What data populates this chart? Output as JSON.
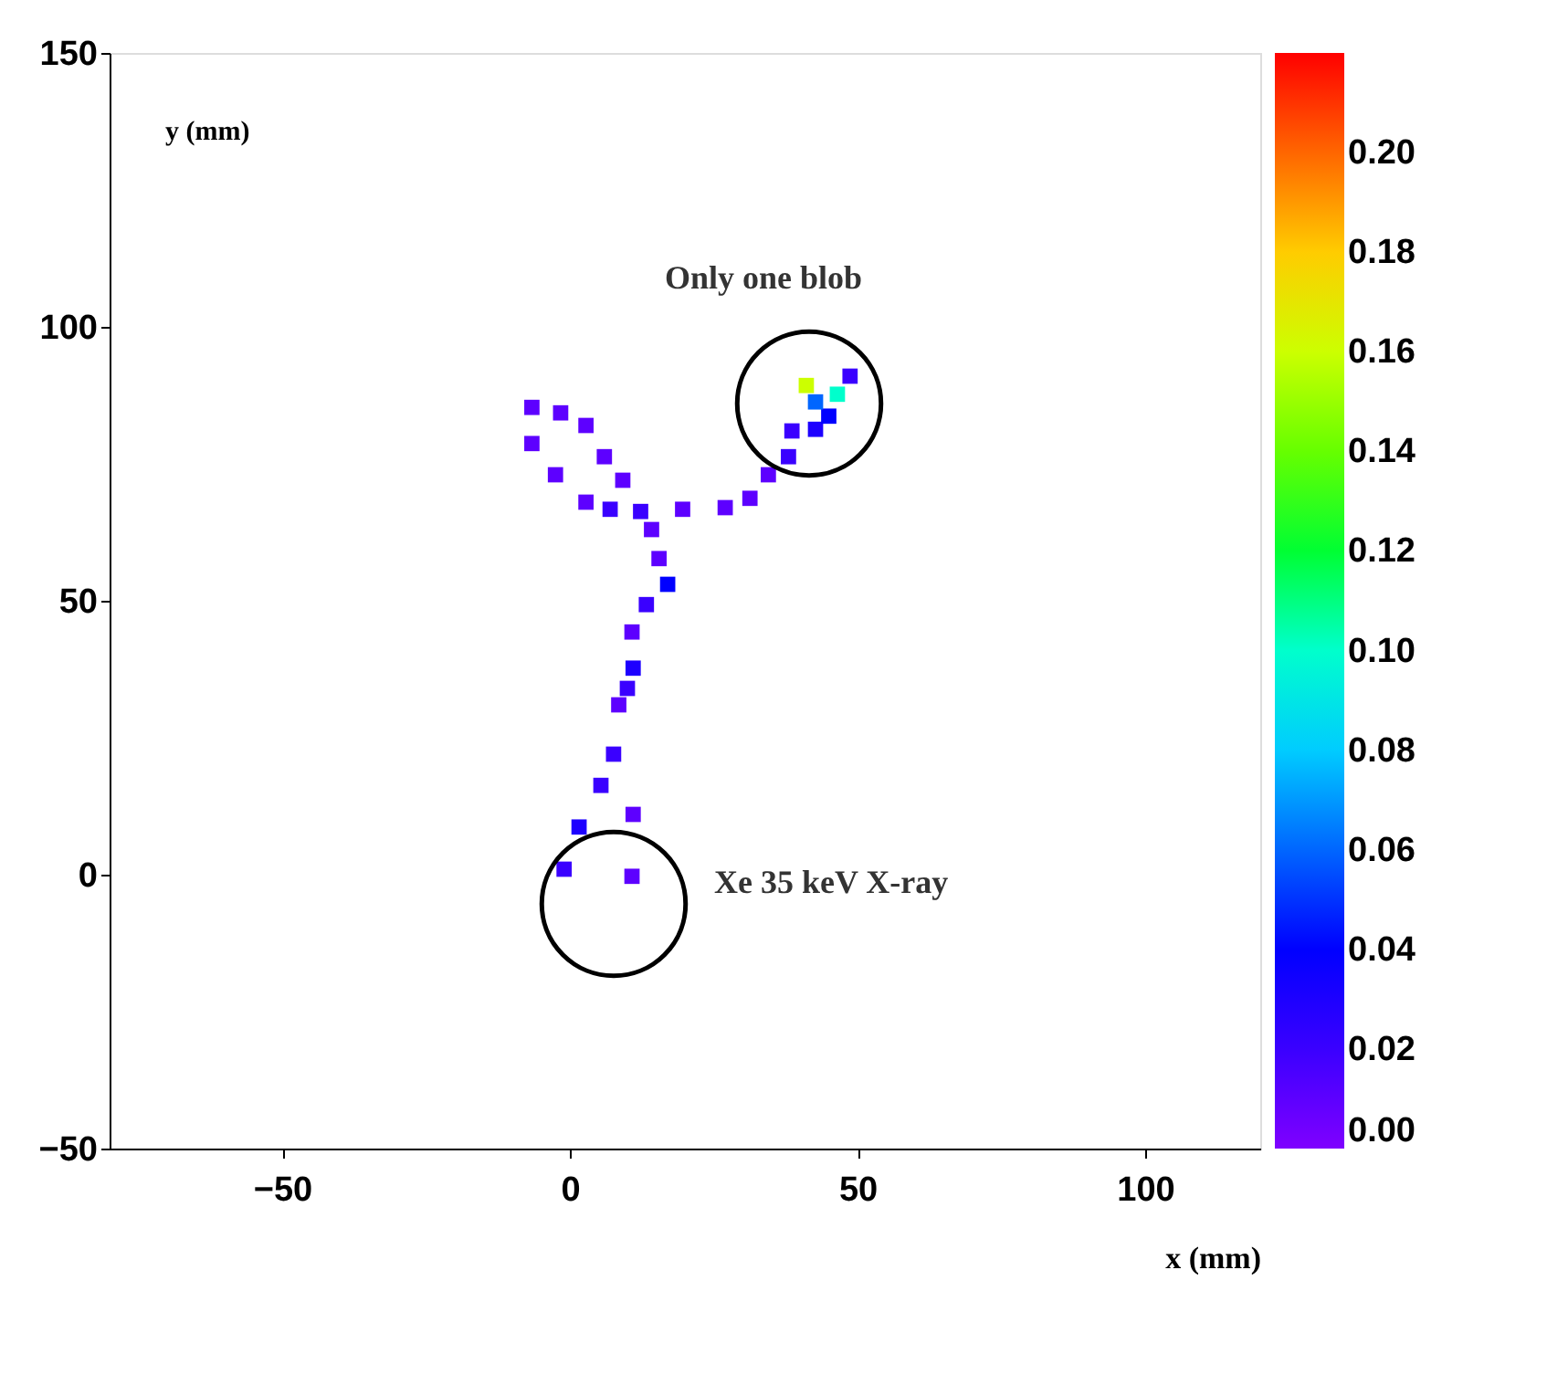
{
  "chart_data": {
    "type": "scatter",
    "xlabel": "x (mm)",
    "ylabel": "y (mm)",
    "xlim": [
      -80,
      120
    ],
    "xticks": [
      -50,
      0,
      50,
      100
    ],
    "ylim": [
      -50,
      150
    ],
    "yticks": [
      -50,
      0,
      50,
      100,
      150
    ],
    "clim": [
      0,
      0.22
    ],
    "cticks": [
      {
        "value": 0,
        "label": "0.00"
      },
      0.02,
      0.04,
      0.06,
      0.08,
      {
        "value": 0.1,
        "label": "0.10"
      },
      0.12,
      0.14,
      0.16,
      0.18,
      {
        "value": 0.2,
        "label": "0.20"
      }
    ],
    "marker": "square",
    "grid": false,
    "x": [
      -1,
      1.6,
      5.4,
      7.6,
      8.5,
      10,
      11,
      10.8,
      13.3,
      17,
      15.5,
      14.2,
      12.3,
      19.6,
      27,
      31.3,
      34.5,
      38,
      38.6,
      42.7,
      45,
      46.5,
      48.7,
      41.1,
      42.7,
      9.2,
      6,
      2.8,
      -1.6,
      -6.6,
      -6.6,
      -2.5,
      2.8,
      7,
      11,
      10.8
    ],
    "values": [
      1,
      8.7,
      16.3,
      22,
      31,
      34,
      37.7,
      44.3,
      49.3,
      53,
      57.7,
      63,
      66.3,
      66.7,
      67,
      68.7,
      73,
      76.3,
      81,
      81.3,
      83.7,
      87.7,
      91,
      89.3,
      86.3,
      72,
      76.3,
      82,
      84.3,
      85.3,
      78.7,
      73,
      68,
      66.7,
      11,
      -0.3
    ],
    "cvalues": [
      0.02,
      0.03,
      0.02,
      0.02,
      0.01,
      0.02,
      0.03,
      0.01,
      0.02,
      0.04,
      0.01,
      0.01,
      0.02,
      0.01,
      0.01,
      0.01,
      0.01,
      0.02,
      0.02,
      0.03,
      0.04,
      0.1,
      0.02,
      0.16,
      0.06,
      0.01,
      0.01,
      0.01,
      0.01,
      0.01,
      0.01,
      0.01,
      0.01,
      0.02,
      0.01,
      0.01
    ],
    "annotations": [
      "Only one blob",
      "Xe 35 keV X-ray"
    ]
  }
}
